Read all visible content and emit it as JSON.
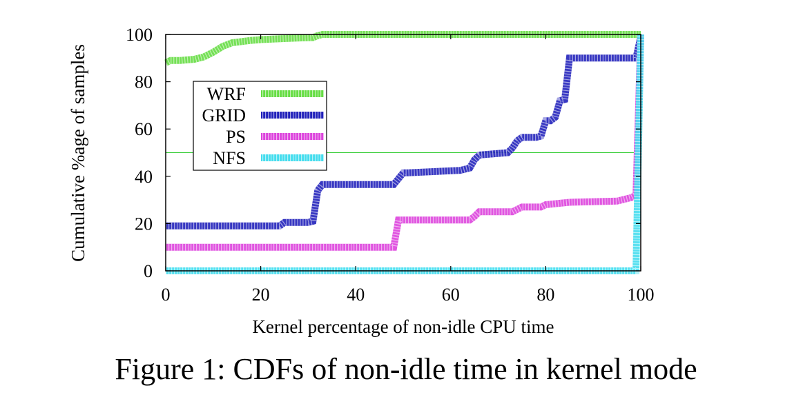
{
  "caption": "Figure 1: CDFs of non-idle time in kernel mode",
  "chart_data": {
    "type": "line",
    "title": "",
    "xlabel": "Kernel percentage of non-idle CPU time",
    "ylabel": "Cumulative %age of samples",
    "xlim": [
      0,
      100
    ],
    "ylim": [
      0,
      100
    ],
    "xticks": [
      0,
      20,
      40,
      60,
      80,
      100
    ],
    "yticks": [
      0,
      20,
      40,
      60,
      80,
      100
    ],
    "grid": false,
    "legend_position": "upper-left",
    "reference_line": {
      "y": 50,
      "color": "#33cc33"
    },
    "series": [
      {
        "name": "WRF",
        "color": "#66dd44",
        "x": [
          0,
          1,
          3,
          6,
          8,
          10,
          12,
          14,
          16,
          18,
          20,
          24,
          28,
          31,
          32,
          33,
          40,
          60,
          80,
          99,
          100
        ],
        "y": [
          88,
          89,
          89,
          89.5,
          90.5,
          92.5,
          95,
          96.5,
          97,
          97.5,
          97.8,
          98.2,
          98.5,
          98.7,
          99.5,
          100,
          100,
          100,
          100,
          100,
          100
        ]
      },
      {
        "name": "GRID",
        "color": "#2222bb",
        "x": [
          0,
          24,
          25,
          30,
          31,
          32,
          33,
          48,
          49,
          50,
          51,
          62,
          64,
          65,
          66,
          72,
          73,
          74,
          75,
          78,
          79,
          80,
          81,
          82,
          83,
          84,
          85,
          99,
          100
        ],
        "y": [
          19,
          19,
          20.5,
          20.5,
          21,
          34,
          36.5,
          36.5,
          39,
          41.5,
          41.5,
          42.5,
          43.5,
          47,
          49,
          50,
          52,
          55,
          56.5,
          56.5,
          57,
          63.5,
          63.5,
          65,
          72,
          72.5,
          90,
          90,
          99
        ]
      },
      {
        "name": "PS",
        "color": "#dd44dd",
        "x": [
          0,
          48,
          49,
          50,
          64,
          65,
          66,
          73,
          74,
          75,
          79,
          80,
          85,
          95,
          98,
          99,
          100
        ],
        "y": [
          10,
          10,
          21.5,
          21.5,
          21.5,
          23,
          25,
          25,
          26,
          27,
          27,
          28,
          29,
          29.5,
          31,
          32,
          100
        ]
      },
      {
        "name": "NFS",
        "color": "#44ddee",
        "x": [
          0,
          98,
          99,
          100
        ],
        "y": [
          0,
          0,
          0,
          100
        ]
      }
    ]
  }
}
